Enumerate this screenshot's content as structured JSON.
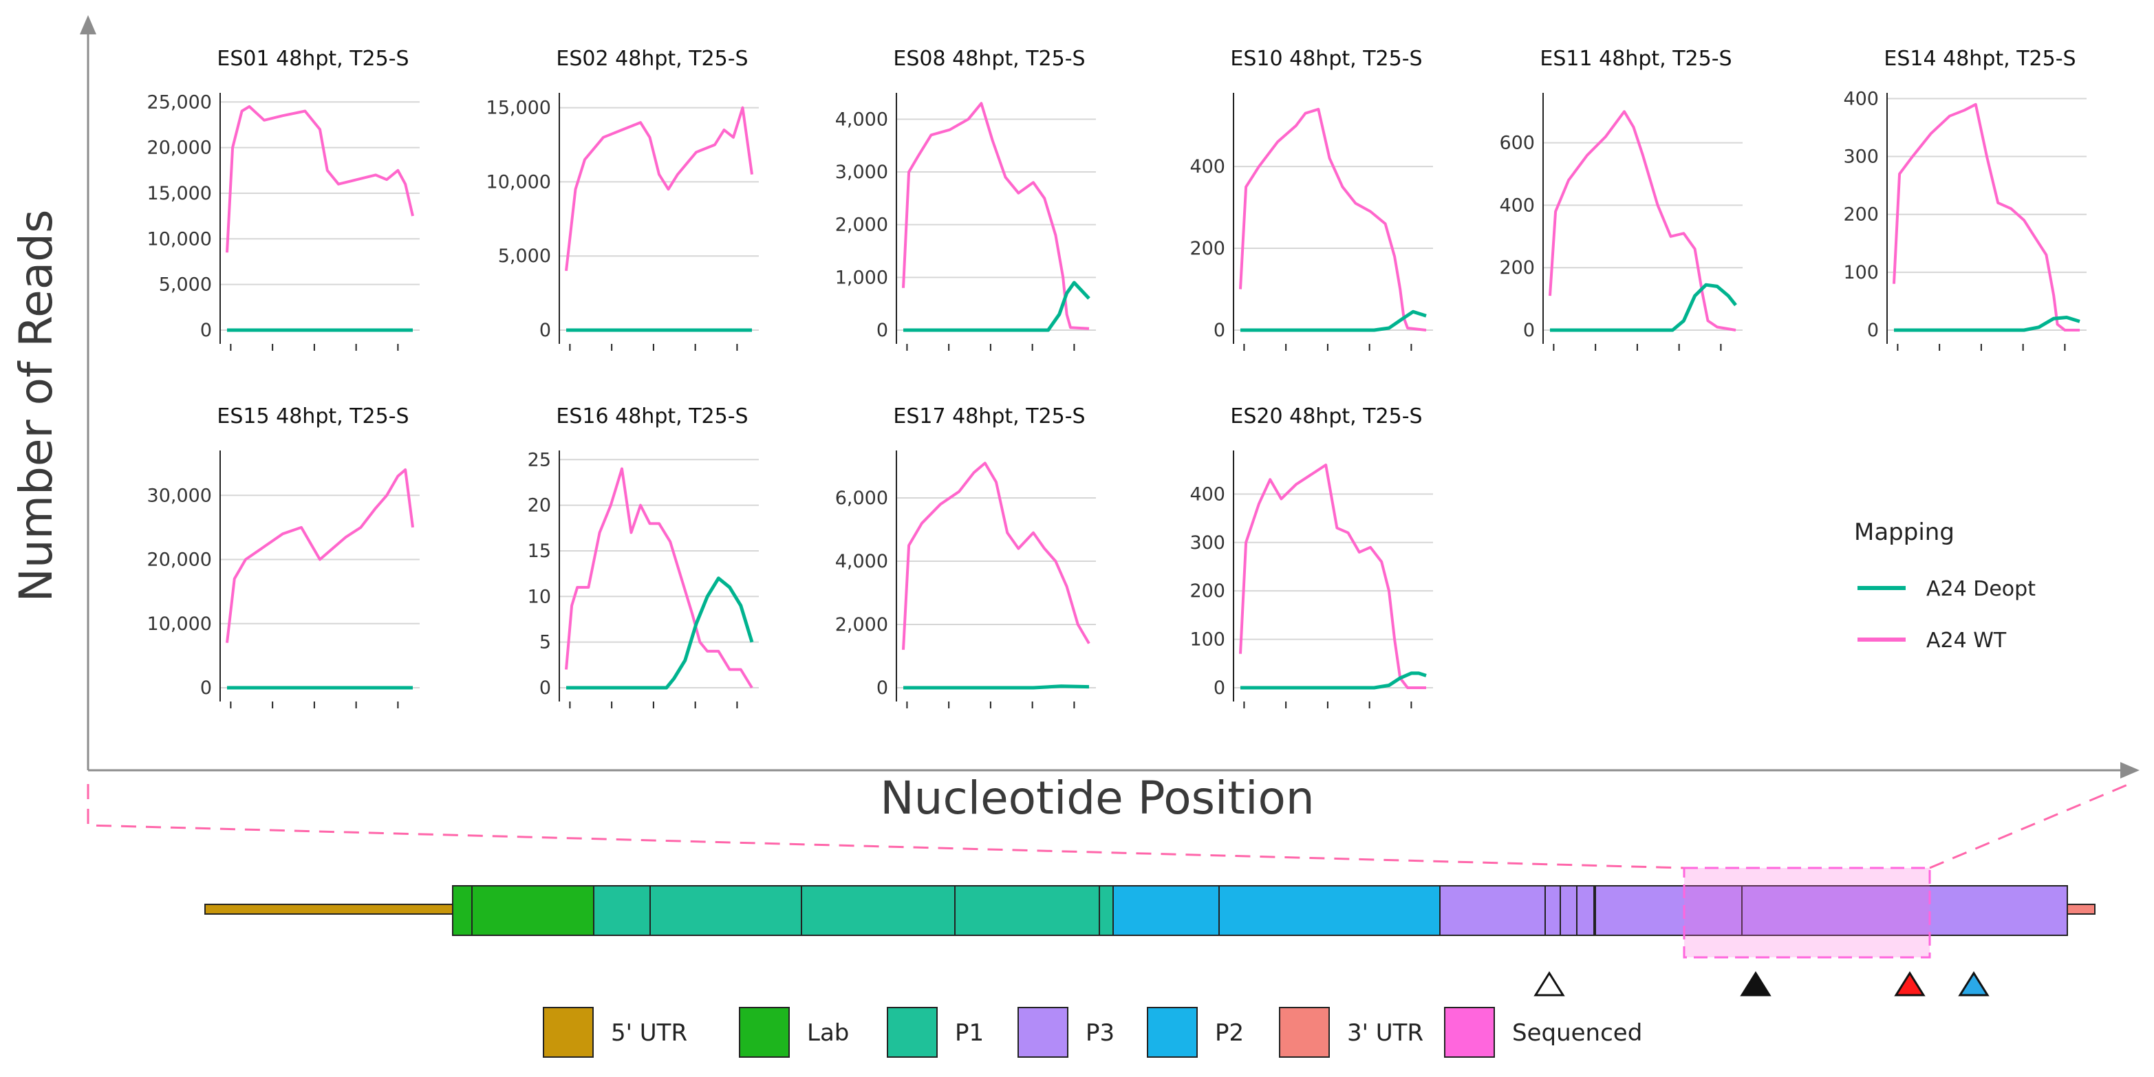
{
  "colors": {
    "wt": "#ff66cc",
    "deopt": "#00b38f",
    "utr5": "#c8960a",
    "lab": "#1db51d",
    "p1": "#1fc199",
    "p2": "#19b3ea",
    "p3": "#b28cf8",
    "utr3": "#f4847c",
    "sequenced": "#ff66dd"
  },
  "figure": {
    "y_axis_title": "Number of Reads",
    "x_axis_title": "Nucleotide Position"
  },
  "legend": {
    "title": "Mapping",
    "items": [
      {
        "label": "A24 Deopt",
        "color_key": "deopt"
      },
      {
        "label": "A24 WT",
        "color_key": "wt"
      }
    ]
  },
  "genome_key": {
    "items": [
      {
        "label": "5' UTR",
        "color_key": "utr5"
      },
      {
        "label": "Lab",
        "color_key": "lab"
      },
      {
        "label": "P1",
        "color_key": "p1"
      },
      {
        "label": "P3",
        "color_key": "p3"
      },
      {
        "label": "P2",
        "color_key": "p2"
      },
      {
        "label": "3' UTR",
        "color_key": "utr3"
      },
      {
        "label": "Sequenced",
        "color_key": "sequenced"
      }
    ],
    "markers": [
      {
        "kind": "open",
        "color": "#ffffff"
      },
      {
        "kind": "filled",
        "color": "#111111"
      },
      {
        "kind": "red",
        "color": "#ff1a1a"
      },
      {
        "kind": "blue",
        "color": "#2aa8e8"
      }
    ]
  },
  "chart_data": [
    {
      "type": "line",
      "title": "ES01 48hpt, T25-S",
      "ylim": [
        0,
        26000
      ],
      "yticks": [
        0,
        5000,
        10000,
        15000,
        20000,
        25000
      ],
      "tick_labels": [
        "0",
        "5,000",
        "10,000",
        "15,000",
        "20,000",
        "25,000"
      ],
      "series": [
        {
          "name": "A24 WT",
          "color_key": "wt",
          "x": [
            0,
            0.03,
            0.08,
            0.12,
            0.2,
            0.3,
            0.42,
            0.5,
            0.54,
            0.6,
            0.7,
            0.8,
            0.86,
            0.92,
            0.96,
            1.0
          ],
          "y": [
            8500,
            20000,
            24000,
            24500,
            23000,
            23500,
            24000,
            22000,
            17500,
            16000,
            16500,
            17000,
            16500,
            17500,
            16000,
            12500
          ]
        },
        {
          "name": "A24 Deopt",
          "color_key": "deopt",
          "x": [
            0,
            1.0
          ],
          "y": [
            0,
            0
          ]
        }
      ]
    },
    {
      "type": "line",
      "title": "ES02 48hpt, T25-S",
      "ylim": [
        0,
        16000
      ],
      "yticks": [
        0,
        5000,
        10000,
        15000
      ],
      "tick_labels": [
        "0",
        "5,000",
        "10,000",
        "15,000"
      ],
      "series": [
        {
          "name": "A24 WT",
          "color_key": "wt",
          "x": [
            0,
            0.05,
            0.1,
            0.2,
            0.3,
            0.4,
            0.45,
            0.5,
            0.55,
            0.6,
            0.7,
            0.8,
            0.85,
            0.9,
            0.95,
            1.0
          ],
          "y": [
            4000,
            9500,
            11500,
            13000,
            13500,
            14000,
            13000,
            10500,
            9500,
            10500,
            12000,
            12500,
            13500,
            13000,
            15000,
            10500
          ]
        },
        {
          "name": "A24 Deopt",
          "color_key": "deopt",
          "x": [
            0,
            1.0
          ],
          "y": [
            0,
            0
          ]
        }
      ]
    },
    {
      "type": "line",
      "title": "ES08 48hpt, T25-S",
      "ylim": [
        0,
        4500
      ],
      "yticks": [
        0,
        1000,
        2000,
        3000,
        4000
      ],
      "tick_labels": [
        "0",
        "1,000",
        "2,000",
        "3,000",
        "4,000"
      ],
      "series": [
        {
          "name": "A24 WT",
          "color_key": "wt",
          "x": [
            0,
            0.03,
            0.08,
            0.15,
            0.25,
            0.35,
            0.42,
            0.48,
            0.55,
            0.62,
            0.7,
            0.76,
            0.82,
            0.86,
            0.88,
            0.9,
            1.0
          ],
          "y": [
            800,
            3000,
            3300,
            3700,
            3800,
            4000,
            4300,
            3600,
            2900,
            2600,
            2800,
            2500,
            1800,
            1000,
            300,
            50,
            30
          ]
        },
        {
          "name": "A24 Deopt",
          "color_key": "deopt",
          "x": [
            0,
            0.78,
            0.84,
            0.88,
            0.92,
            0.96,
            1.0
          ],
          "y": [
            0,
            0,
            300,
            700,
            900,
            750,
            600
          ]
        }
      ]
    },
    {
      "type": "line",
      "title": "ES10 48hpt, T25-S",
      "ylim": [
        0,
        580
      ],
      "yticks": [
        0,
        200,
        400
      ],
      "tick_labels": [
        "0",
        "200",
        "400"
      ],
      "series": [
        {
          "name": "A24 WT",
          "color_key": "wt",
          "x": [
            0,
            0.03,
            0.1,
            0.2,
            0.3,
            0.35,
            0.42,
            0.48,
            0.55,
            0.62,
            0.7,
            0.78,
            0.83,
            0.86,
            0.88,
            0.9,
            1.0
          ],
          "y": [
            100,
            350,
            400,
            460,
            500,
            530,
            540,
            420,
            350,
            310,
            290,
            260,
            180,
            100,
            30,
            5,
            0
          ]
        },
        {
          "name": "A24 Deopt",
          "color_key": "deopt",
          "x": [
            0,
            0.72,
            0.8,
            0.88,
            0.93,
            1.0
          ],
          "y": [
            0,
            0,
            5,
            30,
            45,
            35
          ]
        }
      ]
    },
    {
      "type": "line",
      "title": "ES11 48hpt, T25-S",
      "ylim": [
        0,
        760
      ],
      "yticks": [
        0,
        200,
        400,
        600
      ],
      "tick_labels": [
        "0",
        "200",
        "400",
        "600"
      ],
      "series": [
        {
          "name": "A24 WT",
          "color_key": "wt",
          "x": [
            0,
            0.03,
            0.1,
            0.2,
            0.3,
            0.4,
            0.45,
            0.5,
            0.58,
            0.65,
            0.72,
            0.78,
            0.82,
            0.85,
            0.9,
            1.0
          ],
          "y": [
            110,
            380,
            480,
            560,
            620,
            700,
            650,
            560,
            400,
            300,
            310,
            260,
            120,
            30,
            10,
            0
          ]
        },
        {
          "name": "A24 Deopt",
          "color_key": "deopt",
          "x": [
            0,
            0.66,
            0.72,
            0.78,
            0.84,
            0.9,
            0.96,
            1.0
          ],
          "y": [
            0,
            0,
            30,
            110,
            145,
            140,
            110,
            80
          ]
        }
      ]
    },
    {
      "type": "line",
      "title": "ES14 48hpt, T25-S",
      "ylim": [
        0,
        410
      ],
      "yticks": [
        0,
        100,
        200,
        300,
        400
      ],
      "tick_labels": [
        "0",
        "100",
        "200",
        "300",
        "400"
      ],
      "series": [
        {
          "name": "A24 WT",
          "color_key": "wt",
          "x": [
            0,
            0.03,
            0.1,
            0.2,
            0.3,
            0.38,
            0.44,
            0.5,
            0.56,
            0.63,
            0.7,
            0.76,
            0.82,
            0.86,
            0.88,
            0.92,
            1.0
          ],
          "y": [
            80,
            270,
            300,
            340,
            370,
            380,
            390,
            300,
            220,
            210,
            190,
            160,
            130,
            60,
            10,
            0,
            0
          ]
        },
        {
          "name": "A24 Deopt",
          "color_key": "deopt",
          "x": [
            0,
            0.7,
            0.78,
            0.86,
            0.93,
            1.0
          ],
          "y": [
            0,
            0,
            5,
            20,
            22,
            15
          ]
        }
      ]
    },
    {
      "type": "line",
      "title": "ES15 48hpt, T25-S",
      "ylim": [
        0,
        37000
      ],
      "yticks": [
        0,
        10000,
        20000,
        30000
      ],
      "tick_labels": [
        "0",
        "10,000",
        "20,000",
        "30,000"
      ],
      "series": [
        {
          "name": "A24 WT",
          "color_key": "wt",
          "x": [
            0,
            0.04,
            0.1,
            0.2,
            0.3,
            0.4,
            0.45,
            0.5,
            0.56,
            0.64,
            0.72,
            0.8,
            0.86,
            0.92,
            0.96,
            1.0
          ],
          "y": [
            7000,
            17000,
            20000,
            22000,
            24000,
            25000,
            22500,
            20000,
            21500,
            23500,
            25000,
            28000,
            30000,
            33000,
            34000,
            25000
          ]
        },
        {
          "name": "A24 Deopt",
          "color_key": "deopt",
          "x": [
            0,
            1.0
          ],
          "y": [
            0,
            0
          ]
        }
      ]
    },
    {
      "type": "line",
      "title": "ES16 48hpt, T25-S",
      "ylim": [
        0,
        26
      ],
      "yticks": [
        0,
        5,
        10,
        15,
        20,
        25
      ],
      "tick_labels": [
        "0",
        "5",
        "10",
        "15",
        "20",
        "25"
      ],
      "series": [
        {
          "name": "A24 WT",
          "color_key": "wt",
          "x": [
            0,
            0.03,
            0.06,
            0.12,
            0.18,
            0.24,
            0.3,
            0.35,
            0.4,
            0.45,
            0.5,
            0.56,
            0.62,
            0.68,
            0.72,
            0.76,
            0.82,
            0.88,
            0.94,
            1.0
          ],
          "y": [
            2,
            9,
            11,
            11,
            17,
            20,
            24,
            17,
            20,
            18,
            18,
            16,
            12,
            8,
            5,
            4,
            4,
            2,
            2,
            0
          ]
        },
        {
          "name": "A24 Deopt",
          "color_key": "deopt",
          "x": [
            0,
            0.54,
            0.58,
            0.64,
            0.7,
            0.76,
            0.82,
            0.88,
            0.94,
            1.0
          ],
          "y": [
            0,
            0,
            1,
            3,
            7,
            10,
            12,
            11,
            9,
            5
          ]
        }
      ]
    },
    {
      "type": "line",
      "title": "ES17 48hpt, T25-S",
      "ylim": [
        0,
        7500
      ],
      "yticks": [
        0,
        2000,
        4000,
        6000
      ],
      "tick_labels": [
        "0",
        "2,000",
        "4,000",
        "6,000"
      ],
      "series": [
        {
          "name": "A24 WT",
          "color_key": "wt",
          "x": [
            0,
            0.03,
            0.1,
            0.2,
            0.3,
            0.38,
            0.44,
            0.5,
            0.56,
            0.62,
            0.7,
            0.76,
            0.82,
            0.88,
            0.94,
            1.0
          ],
          "y": [
            1200,
            4500,
            5200,
            5800,
            6200,
            6800,
            7100,
            6500,
            4900,
            4400,
            4900,
            4400,
            4000,
            3200,
            2000,
            1400
          ]
        },
        {
          "name": "A24 Deopt",
          "color_key": "deopt",
          "x": [
            0,
            0.7,
            0.85,
            1.0
          ],
          "y": [
            0,
            0,
            50,
            30
          ]
        }
      ]
    },
    {
      "type": "line",
      "title": "ES20 48hpt, T25-S",
      "ylim": [
        0,
        490
      ],
      "yticks": [
        0,
        100,
        200,
        300,
        400
      ],
      "tick_labels": [
        "0",
        "100",
        "200",
        "300",
        "400"
      ],
      "series": [
        {
          "name": "A24 WT",
          "color_key": "wt",
          "x": [
            0,
            0.03,
            0.1,
            0.16,
            0.22,
            0.3,
            0.38,
            0.46,
            0.52,
            0.58,
            0.64,
            0.7,
            0.76,
            0.8,
            0.83,
            0.86,
            0.9,
            1.0
          ],
          "y": [
            70,
            300,
            380,
            430,
            390,
            420,
            440,
            460,
            330,
            320,
            280,
            290,
            260,
            200,
            100,
            20,
            0,
            0
          ]
        },
        {
          "name": "A24 Deopt",
          "color_key": "deopt",
          "x": [
            0,
            0.72,
            0.8,
            0.86,
            0.92,
            0.96,
            1.0
          ],
          "y": [
            0,
            0,
            5,
            20,
            30,
            30,
            25
          ]
        }
      ]
    }
  ]
}
